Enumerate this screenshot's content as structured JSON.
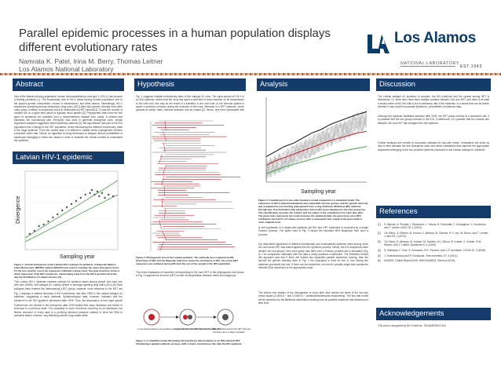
{
  "poster": {
    "title": "Parallel epidemic processes in a human population displays different evolutionary rates",
    "authors": "Namrata K. Patel, Irina M. Berry, Thomas Leitner",
    "institution": "Los Alamos National Laboratory"
  },
  "logo": {
    "name": "Los Alamos",
    "sub": "NATIONAL LABORATORY",
    "est": "EST.1943"
  },
  "sections": {
    "abstract": {
      "title": "Abstract",
      "p1": "One of the fastest evolving organisms, human immunodeficiency virus type 1 (HIV-1) has become a leading pandemic [1]. The evolutionary rate of HIV-1 varies among human populations due to the group's genetic composition, means of transmission, and other factors. Interestingly, HIV-1 sequences spreading among intravenous drug users (IDU) often lack genetic diversity even after many years, contrary to sequences found in heterosexual (HET) spread [2]. To test the number of incident IDU in a given time period is typically much greater [3]. Phylogenetic trees from the two types of epidemics are available from a comprehensive dataset from Latvia. A method that estimates the evolutionary rate (TempEst) was used to generate divergence plots, whose regression analyses suggested mixed epidemics patterns [4]. We hypothesize that part of the IDU population from a bridge to the HET population, hence introducing two different evolutionary rates in the large epidemic. From the current data, it is difficult to classify which phylogenetic member comprises which rate. Hence, an algorithm is being developed to analyze various probabilities of individuals belonging to these two clades in order to illustrate the results needed to understand the epidemic."
    },
    "latvian": {
      "title": "Latvian HIV-1 epidemic",
      "caption": "Figure 1: Genetic divergence of the Latvian HIV-1 subtype A1 epidemic. A Bayesian Markov chain Monte Carlo (MCMC) method (BEAST) was used to estimate the mean divergence times for the tree, and the root-to-tip regression indicated a linear trend. The gray trend line shows a linear regression of all HET sequences, representing a few from the HIV-1 genomic diversity density distribution of Latvian clusters [4].",
      "p1": "This Latvian HIV-1 epidemic contains subtype A1 epidemic strain among people who have sex with men (MSM), and subtype A1, mainly spread in amongst injecting drug users (IDU) [5]. Both subtypes have entered the heterosexual (HET) group; however, most infections in the HET are believed to have originated from the A1 IDU epidemic.",
      "p2": "Fig. 1 displays a marked decrease in the evolutionary rate after 2005 in the Latvian subtype A1 epidemic, suggesting a rapid outbreak. Epidemiological data, however, indicates that the incidence in the IDU epidemic decreased after 2005. Thus, the assumption is that rapid spread into several groups of IDUs and the genetic divergence over time.",
      "p3": "Furthermore, the decline in the divergence after 2005 implies that many mutations and before to reversion to a previous state. The possibility of such reversions occurring is not dismissed, but fitness reversion in every case is a purifying selection pressure unlikely to drive the DNA to ancestral states; however, only affecting specific drug-related sites.",
      "p4": ""
    },
    "hypothesis": {
      "title": "Hypothesis",
      "p1": "Fig. 1 suggests multiple evolutionary rates of the subtype A1 virus. The rapid spread of HIV-1 in an IDU epidemic means that the virus has spent a brief time in each infection on its transmission to the next host, this may be the result of a transition to the next host, or the immune system is aware a selection pressure during the evolution of the virus. Whereas in a HET epidemic, which spreads at slower rates, immune selection has an impact [2]. Hence, one trend associated with the faster evolutionary rate may be due to the subpopulation among IDUs and the other trend following a higher evolutionary rate due to the transmission in the HET population.",
      "caption2": "Figure 2: Phylogenetic tree of the Latvian epidemic. The outbreak tree computed via ML (TreeTime) of HET and the Bayesian inference shows the dominance of IDU; the recent HET sequences are scattered among IDU and the rest of the spread in the IDU population.",
      "p2": "The entire separation of branches corresponding to IDU and HET in the phylogenetic tree shown in Fig. 2 supports the two-tree (HET) model of interpretation between these two subgroups.",
      "caption4": "Figure 4: A simplified model illustrating the hypothesis that humanity as an IDU-infected HET introducing a parallel epidemic process, with a slower evolutionary rate than the IDU epidemic.",
      "model_labels": [
        "A new clinical epidemic was ascribed to a rapid outbreak. The HET was a source of the virus.",
        "Amount with more new HET infection from IDU",
        "The HET/risk involved who HET circle low",
        "introduce new in a larger population"
      ]
    },
    "analysis": {
      "title": "Analysis",
      "caption3": "Figure 3: A dashboard of a two-state dynamics model compared to a simulated model. The sequences of HIV-1 infected individuals were submitted into two groups, and the genetic diversity was computed by constructing phylogenetic trees using maximum likelihood (ML) methods through Ape Tree Estimation (the parameters and results a) are displayed in the time and group. The classification assumes the number and the values of the substitutions for each time after. The green lines represents the result assumes the statistical data; the green lines are a 95% confidence interval for a P-values process with a subsequent fact output of the green data. It must originate from.",
      "p1": "A null hypothesis of a single-rate epidemic (all IDU and HET epidemics is proposed by a single Poisson process. The green lines in Fig. 4 shows the expected 95% dispersion from such a process.",
      "p2": "Our alternative hypothesis of different evolutionary and consequently epidemic rates among some IDU and some HET was tested against the IDU epidemic process. Hence, the IDU sequences were divided into two groups, then each group was fitted with a Poisson process and a simulated (Fig. 4). The comparison estimated with the data a newly epidemic contribution. The indication behind this approach was that if there are indeed two separated parallel epidemics running, then the second the genetic diversity seen in Fig. 1 the phylogeny is treat as one or one having two epidemic processes into one. If there are two epidemics, we need to simplify single each epidemics member (IDU sequence) to the appropriate slope.",
      "p3": "The entries and relation of the divergences at every time slice denote the limits of the two-rate model slopes (0.05% 8 ~ and 0.016% 8 ~ substitutions/site/year respectively). The two rate model will be described by the likelihood distribution resulting from all possible sequence sub-divisions per time slice."
    },
    "discussion": {
      "title": "Discussion",
      "p1": "The Latvian subtype A1 epidemic is complex: the IDU epidemic and the spread among HET is intertwined, i.e. there must have been multiple contacts between IDU and HET, and there is at least a small portion of the IDU with a low evolutionary rate in the epidemic, in a sense that can be tested whether it may result from parallel epidemics, probabilities of epidemic data.",
      "p2": "Although the epidemic facilitates selection after 2005, the HET group evolved at a measured rate, it is possible that the two groups interact in the IDU. Furthermore, it is possible that the contact rate between IDU and HET has changed over the epidemic.",
      "p3": "Further analyses are needed to accurately estimate the two-rate model. Simulations will serve as new to best estimate the two divergence rates and which substitution that captures the appropriate sequences belonging to the two possible epidemic processes in the Latvian subtype A1 epidemic."
    },
    "references": {
      "title": "References",
      "items": [
        {
          "num": "[1]",
          "text": "D. Balode, A. Ferdats, I. Dievberna, L. Viksna, B. Rozentale, T. Kolupajeva, V. Konicheva, and T. Leitner. AIDS 18, 2 (2004)"
        },
        {
          "num": "[2]",
          "text": "I.M. Berry, G. Ribeiro, M. Kumar, S. Athreya, M. Daniels, H.Y. Lee, W. Bruno, and T. Leitner, J Virol 90, 1 (2016)"
        },
        {
          "num": "[3]",
          "text": "I.M. Berry, G. Athreya, M. Kothari, M. Daniels, W.J. Bruno, B. Korber, C. Kuiken, R.M. Ribeiro, and T. Leitner, Epidemics 5, 4 (2009)"
        },
        {
          "num": "[4]",
          "text": "D. Rambaut, F. Vine, S. Schramm, R.E. Parrens, and C.P. Archibald, CCDM 22, 5 (2009)"
        },
        {
          "num": "[5]",
          "text": "J. Hoelscherhaus and P. Rondquist, Vine members, 97, 6 (2011)"
        },
        {
          "num": "[6]",
          "text": "UNAIDS, Global Report 2016, WHO/UNAIDS, Geneva (2015)"
        }
      ]
    },
    "acknowledgements": {
      "title": "Acknowledgements",
      "text": "This work is supported by NIH Grant No.: R01AI087520-01A1"
    }
  },
  "chart_data": [
    {
      "type": "scatter",
      "title": "",
      "xlabel": "Sampling year",
      "ylabel": "Divergence",
      "series": [
        {
          "values": [
            [
              0.05,
              0.2
            ],
            [
              0.1,
              0.24
            ],
            [
              0.15,
              0.3
            ],
            [
              0.2,
              0.32
            ],
            [
              0.25,
              0.36
            ],
            [
              0.3,
              0.41
            ],
            [
              0.35,
              0.45
            ],
            [
              0.4,
              0.5
            ],
            [
              0.45,
              0.54
            ],
            [
              0.5,
              0.58
            ],
            [
              0.55,
              0.62
            ],
            [
              0.6,
              0.66
            ],
            [
              0.65,
              0.7
            ],
            [
              0.7,
              0.72
            ],
            [
              0.72,
              0.76
            ],
            [
              0.75,
              0.7
            ],
            [
              0.78,
              0.74
            ],
            [
              0.8,
              0.68
            ],
            [
              0.83,
              0.72
            ],
            [
              0.86,
              0.66
            ],
            [
              0.9,
              0.7
            ],
            [
              0.95,
              0.68
            ]
          ]
        }
      ],
      "trend_lines": [
        {
          "from": [
            0.0,
            0.15
          ],
          "to": [
            1.0,
            0.88
          ]
        },
        {
          "from": [
            0.0,
            0.1
          ],
          "to": [
            1.0,
            0.7
          ]
        }
      ]
    },
    {
      "type": "line",
      "xlabel": "Sampling year",
      "ylabel": "",
      "series": [
        {
          "values": [
            0.3,
            0.36,
            0.42,
            0.46,
            0.52,
            0.58,
            0.62,
            0.68,
            0.72,
            0.76,
            0.8,
            0.83
          ]
        },
        {
          "values": [
            0.2,
            0.25,
            0.29,
            0.33,
            0.37,
            0.41,
            0.45,
            0.49,
            0.52,
            0.55,
            0.58,
            0.6
          ]
        },
        {
          "values": [
            0.1,
            0.14,
            0.18,
            0.21,
            0.24,
            0.27,
            0.3,
            0.33,
            0.36,
            0.38,
            0.4,
            0.42
          ]
        }
      ]
    }
  ],
  "colors": {
    "bar": "#143b69",
    "tree_red": "#c8202a",
    "tree_gray": "#888888",
    "scatter": "#555555",
    "trend_green": "#4aa04a",
    "line_black": "#111111",
    "line_red": "#c8202a"
  }
}
